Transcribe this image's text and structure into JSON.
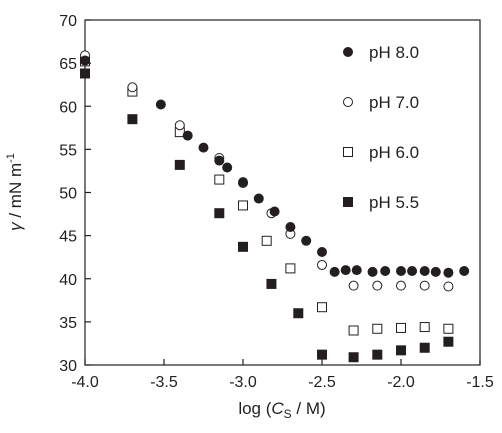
{
  "chart_data": {
    "type": "scatter",
    "xlabel": "log (C_S / M)",
    "xlabel_parts": {
      "prefix": "log (",
      "var": "C",
      "sub": "S",
      "suffix": " / M)"
    },
    "ylabel": "γ / mN m⁻¹",
    "ylabel_parts": {
      "var": "γ",
      "unit": " / mN m",
      "sup": "-1"
    },
    "xlim": [
      -4.0,
      -1.5
    ],
    "ylim": [
      30,
      70
    ],
    "xticks": [
      -4.0,
      -3.5,
      -3.0,
      -2.5,
      -2.0,
      -1.5
    ],
    "xtick_labels": [
      "-4.0",
      "-3.5",
      "-3.0",
      "-2.5",
      "-2.0",
      "-1.5"
    ],
    "yticks": [
      30,
      35,
      40,
      45,
      50,
      55,
      60,
      65,
      70
    ],
    "ytick_labels": [
      "30",
      "35",
      "40",
      "45",
      "50",
      "55",
      "60",
      "65",
      "70"
    ],
    "grid": false,
    "legend_position": "top-right",
    "series": [
      {
        "name": "pH 8.0",
        "marker": "filled-circle",
        "x": [
          -4.0,
          -3.52,
          -3.35,
          -3.25,
          -3.15,
          -3.1,
          -3.0,
          -2.9,
          -2.8,
          -2.7,
          -2.6,
          -2.5,
          -2.42,
          -2.35,
          -2.28,
          -2.18,
          -2.1,
          -2.0,
          -1.93,
          -1.85,
          -1.78,
          -1.7,
          -1.6
        ],
        "y": [
          65.3,
          60.2,
          56.6,
          55.2,
          53.7,
          52.9,
          51.2,
          49.3,
          47.8,
          46.0,
          44.4,
          43.1,
          40.8,
          41.0,
          41.0,
          40.8,
          40.9,
          40.9,
          40.9,
          40.9,
          40.8,
          40.7,
          40.9
        ]
      },
      {
        "name": "pH 7.0",
        "marker": "open-circle",
        "x": [
          -4.0,
          -3.7,
          -3.4,
          -3.15,
          -3.0,
          -2.82,
          -2.7,
          -2.5,
          -2.3,
          -2.15,
          -2.0,
          -1.85,
          -1.7
        ],
        "y": [
          65.9,
          62.2,
          57.8,
          54.0,
          51.1,
          47.6,
          45.2,
          41.6,
          39.2,
          39.2,
          39.2,
          39.2,
          39.1
        ]
      },
      {
        "name": "pH 6.0",
        "marker": "open-square",
        "x": [
          -4.0,
          -3.7,
          -3.4,
          -3.15,
          -3.0,
          -2.85,
          -2.7,
          -2.5,
          -2.3,
          -2.15,
          -2.0,
          -1.85,
          -1.7
        ],
        "y": [
          65.2,
          61.7,
          57.0,
          51.5,
          48.5,
          44.4,
          41.2,
          36.7,
          34.0,
          34.2,
          34.3,
          34.4,
          34.2
        ]
      },
      {
        "name": "pH 5.5",
        "marker": "filled-square",
        "x": [
          -4.0,
          -3.7,
          -3.4,
          -3.15,
          -3.0,
          -2.82,
          -2.65,
          -2.5,
          -2.3,
          -2.15,
          -2.0,
          -1.85,
          -1.7
        ],
        "y": [
          63.8,
          58.5,
          53.2,
          47.6,
          43.7,
          39.4,
          36.0,
          31.2,
          30.9,
          31.2,
          31.7,
          32.0,
          32.7
        ]
      }
    ]
  }
}
